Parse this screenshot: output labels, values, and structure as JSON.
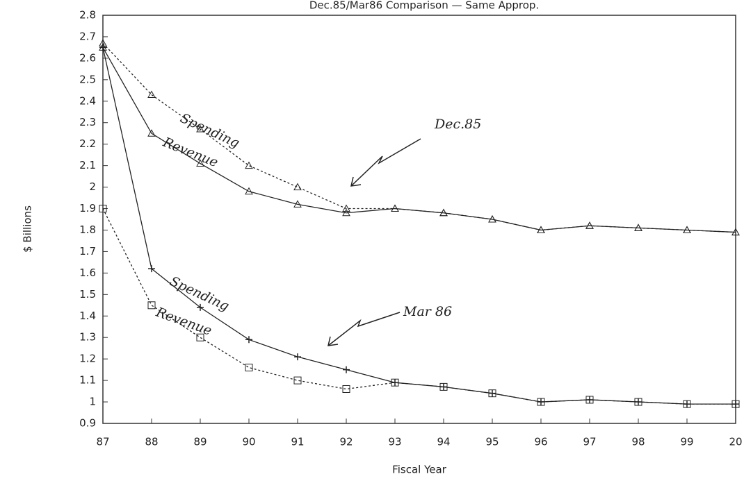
{
  "chart_data": {
    "type": "line",
    "title": "Dec.85/Mar86 Comparison — Same Approp.",
    "x_label": "Fiscal Year",
    "y_label": "$ Billions",
    "categories": [
      "87",
      "88",
      "89",
      "90",
      "91",
      "92",
      "93",
      "94",
      "95",
      "96",
      "97",
      "98",
      "99",
      "20"
    ],
    "series": [
      {
        "name": "Spending",
        "color": "#222",
        "marker": "triangle",
        "dashed": true,
        "values": [
          2.67,
          2.43,
          2.27,
          2.1,
          2.0,
          1.9,
          1.9,
          1.88,
          1.85,
          1.8,
          1.82,
          1.81,
          1.8,
          1.79
        ]
      },
      {
        "name": "Revenue",
        "color": "#222",
        "marker": "triangle",
        "dashed": false,
        "values": [
          2.65,
          2.25,
          2.11,
          1.98,
          1.92,
          1.88,
          1.9,
          1.88,
          1.85,
          1.8,
          1.82,
          1.81,
          1.8,
          1.79
        ]
      },
      {
        "name": "Spending",
        "color": "#222",
        "marker": "plus",
        "dashed": false,
        "values": [
          2.65,
          1.62,
          1.44,
          1.29,
          1.21,
          1.15,
          1.09,
          1.07,
          1.04,
          1.0,
          1.01,
          1.0,
          0.99,
          0.99
        ]
      },
      {
        "name": "Revenue",
        "color": "#222",
        "marker": "square",
        "dashed": true,
        "values": [
          1.9,
          1.45,
          1.3,
          1.16,
          1.1,
          1.06,
          1.09,
          1.07,
          1.04,
          1.0,
          1.01,
          1.0,
          0.99,
          0.99
        ]
      }
    ],
    "annotations": [
      "Dec.85",
      "Mar 86"
    ],
    "ylim": [
      0.9,
      2.8
    ],
    "yticks": [
      0.9,
      1,
      1.1,
      1.2,
      1.3,
      1.4,
      1.5,
      1.6,
      1.7,
      1.8,
      1.9,
      2,
      2.1,
      2.2,
      2.3,
      2.4,
      2.5,
      2.6,
      2.7,
      2.8
    ]
  }
}
